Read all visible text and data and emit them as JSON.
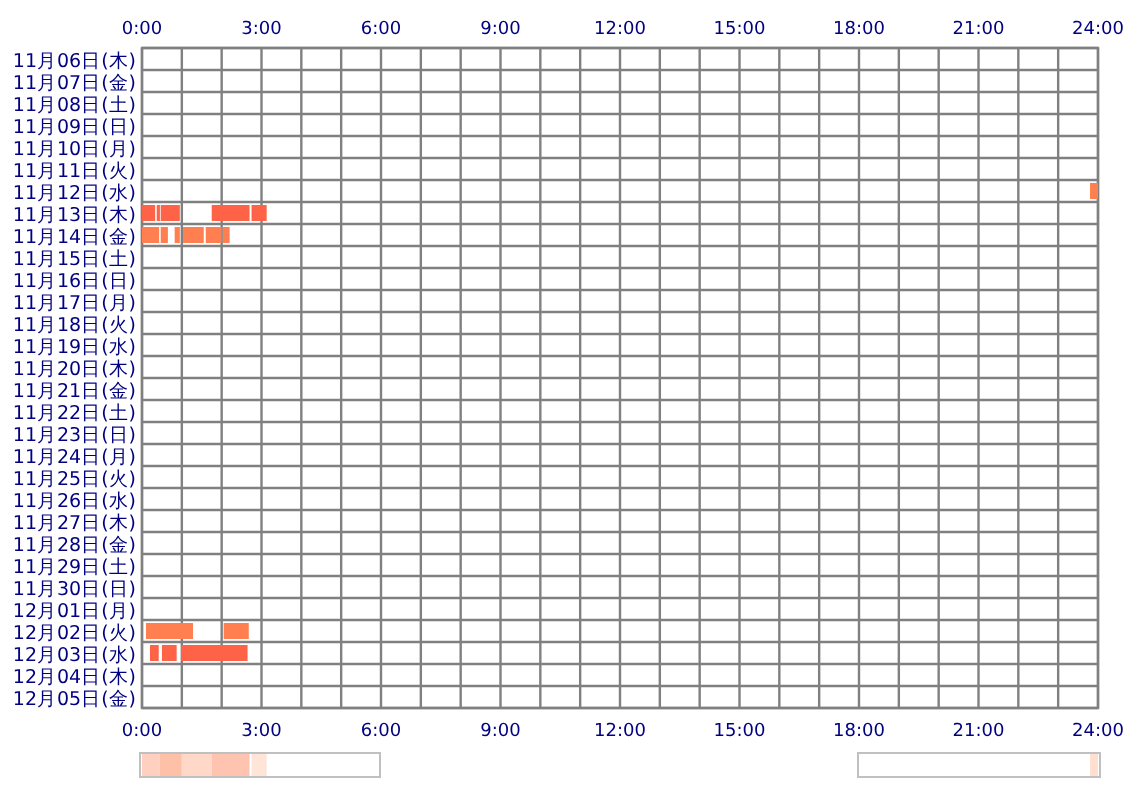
{
  "chart_data": {
    "type": "bar",
    "orientation": "horizontal",
    "grid": true,
    "categories": [
      "11月06日(木)",
      "11月07日(金)",
      "11月08日(土)",
      "11月09日(日)",
      "11月10日(月)",
      "11月11日(火)",
      "11月12日(水)",
      "11月13日(木)",
      "11月14日(金)",
      "11月15日(土)",
      "11月16日(日)",
      "11月17日(月)",
      "11月18日(火)",
      "11月19日(水)",
      "11月20日(木)",
      "11月21日(金)",
      "11月22日(土)",
      "11月23日(日)",
      "11月24日(月)",
      "11月25日(火)",
      "11月26日(水)",
      "11月27日(木)",
      "11月28日(金)",
      "11月29日(土)",
      "11月30日(日)",
      "12月01日(月)",
      "12月02日(火)",
      "12月03日(水)",
      "12月04日(木)",
      "12月05日(金)"
    ],
    "xlim": [
      0,
      24
    ],
    "xticks": [
      {
        "value": 0,
        "label": "0:00"
      },
      {
        "value": 3,
        "label": "3:00"
      },
      {
        "value": 6,
        "label": "6:00"
      },
      {
        "value": 9,
        "label": "9:00"
      },
      {
        "value": 12,
        "label": "12:00"
      },
      {
        "value": 15,
        "label": "15:00"
      },
      {
        "value": 18,
        "label": "18:00"
      },
      {
        "value": 21,
        "label": "21:00"
      },
      {
        "value": 24,
        "label": "24:00"
      }
    ],
    "x2lim": [
      0,
      24
    ],
    "x2ticks": [
      {
        "value": 0,
        "label": "0:00"
      },
      {
        "value": 3,
        "label": "3:00"
      },
      {
        "value": 6,
        "label": "6:00"
      },
      {
        "value": 9,
        "label": "9:00"
      },
      {
        "value": 12,
        "label": "12:00"
      },
      {
        "value": 15,
        "label": "15:00"
      },
      {
        "value": 18,
        "label": "18:00"
      },
      {
        "value": 21,
        "label": "21:00"
      },
      {
        "value": 24,
        "label": "24:00"
      }
    ],
    "series": [
      {
        "base": [
          null,
          null,
          null,
          null,
          null,
          null,
          23.8,
          0,
          0,
          null,
          null,
          null,
          null,
          null,
          null,
          null,
          null,
          null,
          null,
          null,
          null,
          null,
          null,
          null,
          null,
          null,
          0.1,
          0.2,
          null,
          null
        ],
        "values": [
          null,
          null,
          null,
          null,
          null,
          null,
          0.2,
          0.33,
          0.43,
          null,
          null,
          null,
          null,
          null,
          null,
          null,
          null,
          null,
          null,
          null,
          null,
          null,
          null,
          null,
          null,
          null,
          1.18,
          0.22,
          null,
          null
        ],
        "colors": [
          null,
          null,
          null,
          null,
          null,
          null,
          "#ff7f50",
          "#ff6347",
          "#ff7f50",
          null,
          null,
          null,
          null,
          null,
          null,
          null,
          null,
          null,
          null,
          null,
          null,
          null,
          null,
          null,
          null,
          null,
          "#ff7f50",
          "#ff6347",
          null,
          null
        ]
      },
      {
        "base": [
          null,
          null,
          null,
          null,
          null,
          null,
          null,
          0.37,
          0.47,
          null,
          null,
          null,
          null,
          null,
          null,
          null,
          null,
          null,
          null,
          null,
          null,
          null,
          null,
          null,
          null,
          null,
          2.05,
          0.5,
          null,
          null
        ],
        "values": [
          null,
          null,
          null,
          null,
          null,
          null,
          null,
          0.08,
          0.18,
          null,
          null,
          null,
          null,
          null,
          null,
          null,
          null,
          null,
          null,
          null,
          null,
          null,
          null,
          null,
          null,
          null,
          0.63,
          0.37,
          null,
          null
        ],
        "colors": [
          null,
          null,
          null,
          null,
          null,
          null,
          null,
          "#ff6347",
          "#ff7f50",
          null,
          null,
          null,
          null,
          null,
          null,
          null,
          null,
          null,
          null,
          null,
          null,
          null,
          null,
          null,
          null,
          null,
          "#ff7f50",
          "#ff6347",
          null,
          null
        ]
      },
      {
        "base": [
          null,
          null,
          null,
          null,
          null,
          null,
          null,
          0.47,
          0.82,
          null,
          null,
          null,
          null,
          null,
          null,
          null,
          null,
          null,
          null,
          null,
          null,
          null,
          null,
          null,
          null,
          null,
          null,
          0.98,
          null,
          null
        ],
        "values": [
          null,
          null,
          null,
          null,
          null,
          null,
          null,
          0.48,
          0.13,
          null,
          null,
          null,
          null,
          null,
          null,
          null,
          null,
          null,
          null,
          null,
          null,
          null,
          null,
          null,
          null,
          null,
          null,
          1.67,
          null,
          null
        ],
        "colors": [
          null,
          null,
          null,
          null,
          null,
          null,
          null,
          "#ff6347",
          "#ff7f50",
          null,
          null,
          null,
          null,
          null,
          null,
          null,
          null,
          null,
          null,
          null,
          null,
          null,
          null,
          null,
          null,
          null,
          null,
          "#ff6347",
          null,
          null
        ]
      },
      {
        "base": [
          null,
          null,
          null,
          null,
          null,
          null,
          null,
          1.75,
          1.03,
          null,
          null,
          null,
          null,
          null,
          null,
          null,
          null,
          null,
          null,
          null,
          null,
          null,
          null,
          null,
          null,
          null,
          null,
          null,
          null,
          null
        ],
        "values": [
          null,
          null,
          null,
          null,
          null,
          null,
          null,
          0.95,
          0.52,
          null,
          null,
          null,
          null,
          null,
          null,
          null,
          null,
          null,
          null,
          null,
          null,
          null,
          null,
          null,
          null,
          null,
          null,
          null,
          null,
          null
        ],
        "colors": [
          null,
          null,
          null,
          null,
          null,
          null,
          null,
          "#ff6347",
          "#ff7f50",
          null,
          null,
          null,
          null,
          null,
          null,
          null,
          null,
          null,
          null,
          null,
          null,
          null,
          null,
          null,
          null,
          null,
          null,
          null,
          null,
          null
        ]
      },
      {
        "base": [
          null,
          null,
          null,
          null,
          null,
          null,
          null,
          2.75,
          1.6,
          null,
          null,
          null,
          null,
          null,
          null,
          null,
          null,
          null,
          null,
          null,
          null,
          null,
          null,
          null,
          null,
          null,
          null,
          null,
          null,
          null
        ],
        "values": [
          null,
          null,
          null,
          null,
          null,
          null,
          null,
          0.38,
          0.4,
          null,
          null,
          null,
          null,
          null,
          null,
          null,
          null,
          null,
          null,
          null,
          null,
          null,
          null,
          null,
          null,
          null,
          null,
          null,
          null,
          null
        ],
        "colors": [
          null,
          null,
          null,
          null,
          null,
          null,
          null,
          "#ff6347",
          "#ff7f50",
          null,
          null,
          null,
          null,
          null,
          null,
          null,
          null,
          null,
          null,
          null,
          null,
          null,
          null,
          null,
          null,
          null,
          null,
          null,
          null,
          null
        ]
      },
      {
        "base": [
          null,
          null,
          null,
          null,
          null,
          null,
          null,
          null,
          2.03,
          null,
          null,
          null,
          null,
          null,
          null,
          null,
          null,
          null,
          null,
          null,
          null,
          null,
          null,
          null,
          null,
          null,
          null,
          null,
          null,
          null
        ],
        "values": [
          null,
          null,
          null,
          null,
          null,
          null,
          null,
          null,
          0.17,
          null,
          null,
          null,
          null,
          null,
          null,
          null,
          null,
          null,
          null,
          null,
          null,
          null,
          null,
          null,
          null,
          null,
          null,
          null,
          null,
          null
        ],
        "colors": [
          null,
          null,
          null,
          null,
          null,
          null,
          null,
          null,
          "#ff7f50",
          null,
          null,
          null,
          null,
          null,
          null,
          null,
          null,
          null,
          null,
          null,
          null,
          null,
          null,
          null,
          null,
          null,
          null,
          null,
          null,
          null
        ]
      }
    ]
  }
}
